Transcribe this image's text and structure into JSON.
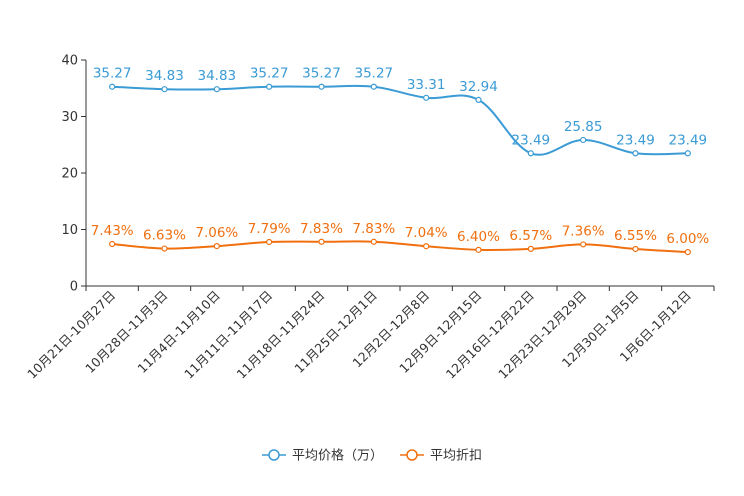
{
  "chart_data": {
    "type": "line",
    "title": "",
    "xlabel": "",
    "ylabel": "",
    "ylim": [
      0,
      40
    ],
    "yticks": [
      "0",
      "10",
      "20",
      "30",
      "40"
    ],
    "categories": [
      "10月21日-10月27日",
      "10月28日-11月3日",
      "11月4日-11月10日",
      "11月11日-11月17日",
      "11月18日-11月24日",
      "11月25日-12月1日",
      "12月2日-12月8日",
      "12月9日-12月15日",
      "12月16日-12月22日",
      "12月23日-12月29日",
      "12月30日-1月5日",
      "1月6日-1月12日"
    ],
    "series": [
      {
        "name": "平均价格（万）",
        "color": "#3a9bd5",
        "values": [
          35.27,
          34.83,
          34.83,
          35.27,
          35.27,
          35.27,
          33.31,
          32.94,
          23.49,
          25.85,
          23.49,
          23.49
        ],
        "labels": [
          "35.27",
          "34.83",
          "34.83",
          "35.27",
          "35.27",
          "35.27",
          "33.31",
          "32.94",
          "23.49",
          "25.85",
          "23.49",
          "23.49"
        ]
      },
      {
        "name": "平均折扣",
        "color": "#f07010",
        "values": [
          7.43,
          6.63,
          7.06,
          7.79,
          7.83,
          7.83,
          7.04,
          6.4,
          6.57,
          7.36,
          6.55,
          6.0
        ],
        "labels": [
          "7.43%",
          "6.63%",
          "7.06%",
          "7.79%",
          "7.83%",
          "7.83%",
          "7.04%",
          "6.40%",
          "6.57%",
          "7.36%",
          "6.55%",
          "6.00%"
        ]
      }
    ],
    "legend_position": "bottom-center",
    "grid": false
  }
}
